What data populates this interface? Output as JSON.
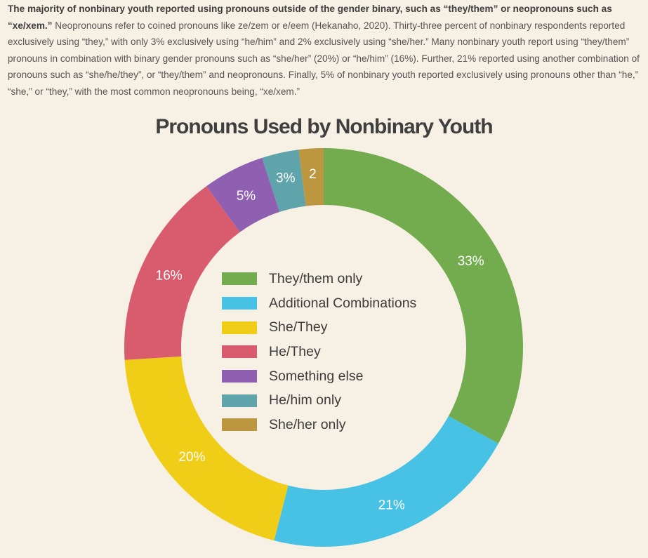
{
  "intro": {
    "lead": "The majority of nonbinary youth reported using pronouns outside of the gender binary, such as “they/them” or neopronouns such as “xe/xem.”",
    "body": " Neopronouns refer to coined pronouns like ze/zem or e/eem (Hekanaho, 2020). Thirty-three percent of nonbinary respondents reported exclusively using “they,” with only 3% exclusively using “he/him” and 2% exclusively using “she/her.” Many nonbinary youth report using “they/them” pronouns in combination with binary gender pronouns such as “she/her” (20%) or “he/him” (16%). Further, 21% reported using another combination of pronouns such as “she/he/they”, or “they/them” and neopronouns. Finally, 5% of nonbinary youth reported exclusively using pronouns other than “he,” “she,” or “they,” with the most common neopronouns being, “xe/xem.”"
  },
  "chart_data": {
    "type": "pie",
    "title": "Pronouns Used by Nonbinary Youth",
    "legend_position": "center",
    "categories": [
      "They/them only",
      "Additional Combinations",
      "She/They",
      "He/They",
      "Something else",
      "He/him only",
      "She/her only"
    ],
    "values": [
      33,
      21,
      20,
      16,
      5,
      3,
      2
    ],
    "labels": [
      "33%",
      "21%",
      "20%",
      "16%",
      "5%",
      "3%",
      "2"
    ],
    "colors": [
      "#73ab4f",
      "#48c2e4",
      "#f0cd16",
      "#d95c6e",
      "#8f5fb1",
      "#5fa3ab",
      "#bd9740"
    ]
  }
}
